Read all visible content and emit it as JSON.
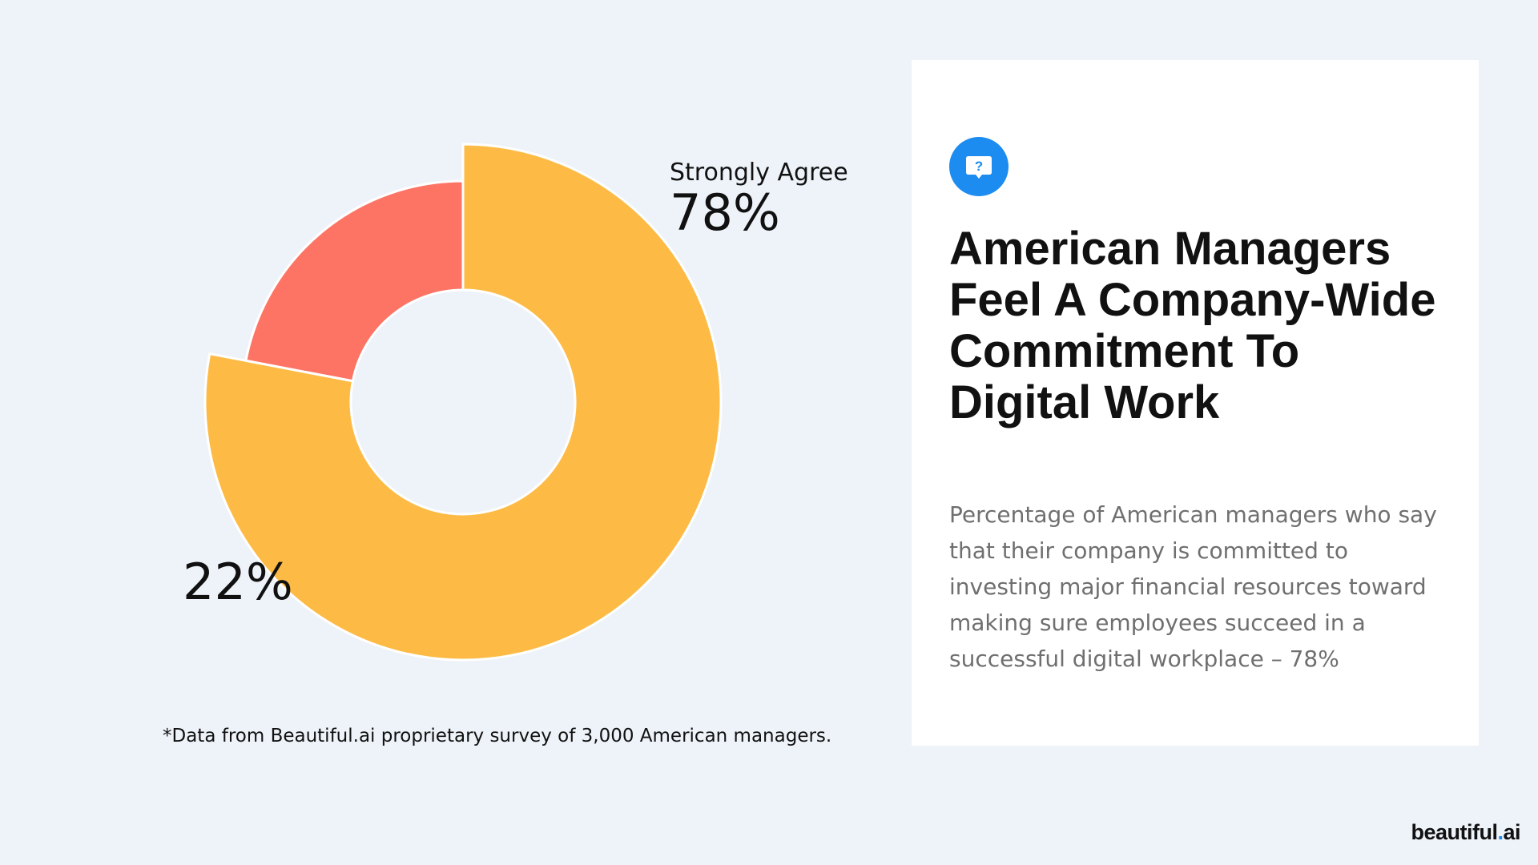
{
  "chart_data": {
    "type": "pie",
    "style": "donut",
    "categories": [
      "Strongly Agree",
      ""
    ],
    "values": [
      78,
      22
    ],
    "value_labels": [
      "78%",
      "22%"
    ],
    "colors": [
      "#fdbb46",
      "#fd7465"
    ],
    "title": ""
  },
  "labels": {
    "agree_name": "Strongly Agree",
    "agree_value": "78%",
    "other_value": "22%"
  },
  "footnote": "*Data from Beautiful.ai proprietary survey of 3,000 American managers.",
  "card": {
    "icon": "question-bubble-icon",
    "icon_color": "#1c8cf0",
    "title": "American Managers Feel A Company-Wide Commitment To Digital Work",
    "description": "Percentage of American managers who say that their company is committed to investing major financial resources toward making sure employees succeed in a successful digital workplace – 78%"
  },
  "brand": {
    "name_start": "beautiful",
    "dot": ".",
    "name_end": "ai"
  }
}
